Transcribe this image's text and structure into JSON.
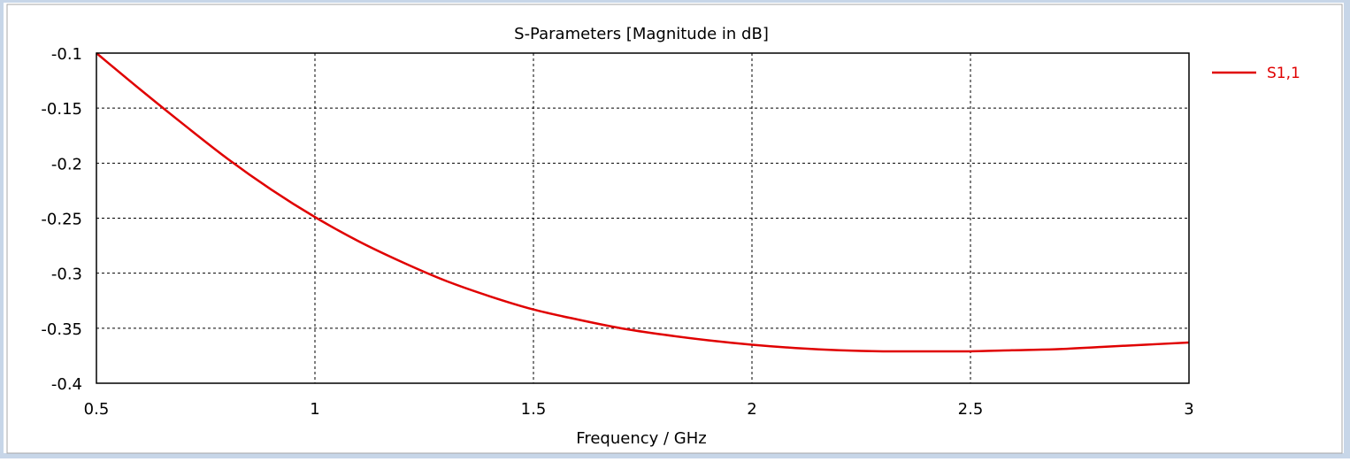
{
  "chart_data": {
    "type": "line",
    "title": "S-Parameters [Magnitude in dB]",
    "xlabel": "Frequency / GHz",
    "ylabel": "",
    "xlim": [
      0.5,
      3
    ],
    "ylim": [
      -0.4,
      -0.1
    ],
    "x_ticks": [
      0.5,
      1,
      1.5,
      2,
      2.5,
      3
    ],
    "y_ticks": [
      -0.1,
      -0.15,
      -0.2,
      -0.25,
      -0.3,
      -0.35,
      -0.4
    ],
    "x_tick_labels": [
      "0.5",
      "1",
      "1.5",
      "2",
      "2.5",
      "3"
    ],
    "y_tick_labels": [
      "-0.1",
      "-0.15",
      "-0.2",
      "-0.25",
      "-0.3",
      "-0.35",
      "-0.4"
    ],
    "grid": true,
    "legend_position": "right",
    "series": [
      {
        "name": "S1,1",
        "color": "#e00000",
        "x": [
          0.5,
          0.6,
          0.7,
          0.8,
          0.9,
          1.0,
          1.1,
          1.2,
          1.3,
          1.4,
          1.5,
          1.6,
          1.7,
          1.8,
          1.9,
          2.0,
          2.1,
          2.2,
          2.3,
          2.4,
          2.5,
          2.6,
          2.7,
          2.8,
          2.9,
          3.0
        ],
        "y": [
          -0.1,
          -0.133,
          -0.165,
          -0.196,
          -0.224,
          -0.249,
          -0.271,
          -0.29,
          -0.307,
          -0.321,
          -0.333,
          -0.342,
          -0.35,
          -0.356,
          -0.361,
          -0.365,
          -0.368,
          -0.37,
          -0.371,
          -0.371,
          -0.371,
          -0.37,
          -0.369,
          -0.367,
          -0.365,
          -0.363
        ]
      }
    ]
  }
}
